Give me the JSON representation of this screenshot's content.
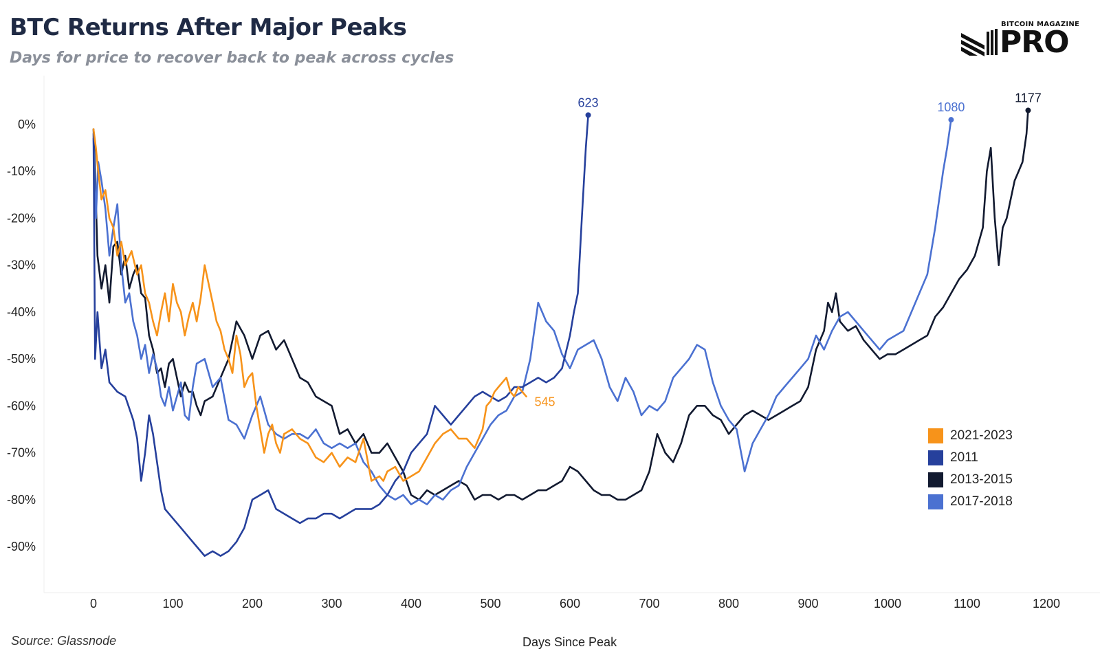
{
  "header": {
    "title": "BTC Returns After Major Peaks",
    "subtitle": "Days for price to recover back to peak across cycles"
  },
  "logo": {
    "top_text": "BITCOIN MAGAZINE",
    "main_text": "PRO"
  },
  "footer": {
    "source": "Source: Glassnode"
  },
  "chart_data": {
    "type": "line",
    "title": "BTC Returns After Major Peaks",
    "subtitle": "Days for price to recover back to peak across cycles",
    "xlabel": "Days Since Peak",
    "ylabel": "",
    "xlim": [
      -60,
      1240
    ],
    "ylim": [
      -97,
      5
    ],
    "x_ticks": [
      0,
      100,
      200,
      300,
      400,
      500,
      600,
      700,
      800,
      900,
      1000,
      1100,
      1200
    ],
    "x_tick_labels": [
      "0",
      "100",
      "200",
      "300",
      "400",
      "500",
      "600",
      "700",
      "800",
      "900",
      "1000",
      "1100",
      "1200"
    ],
    "y_ticks": [
      0,
      -10,
      -20,
      -30,
      -40,
      -50,
      -60,
      -70,
      -80,
      -90
    ],
    "y_tick_labels": [
      "0%",
      "-10%",
      "-20%",
      "-30%",
      "-40%",
      "-50%",
      "-60%",
      "-70%",
      "-80%",
      "-90%"
    ],
    "grid": false,
    "legend_position": "bottom-right",
    "series": [
      {
        "name": "2021-2023",
        "color": "#f7931a",
        "end_label": "545",
        "end_marker": false,
        "x": [
          0,
          3,
          6,
          10,
          15,
          20,
          25,
          30,
          35,
          40,
          48,
          55,
          60,
          65,
          70,
          75,
          80,
          85,
          90,
          95,
          100,
          105,
          110,
          115,
          120,
          125,
          130,
          135,
          140,
          145,
          150,
          155,
          160,
          165,
          170,
          175,
          180,
          185,
          190,
          195,
          200,
          205,
          210,
          215,
          220,
          225,
          230,
          235,
          240,
          250,
          260,
          270,
          280,
          290,
          300,
          310,
          320,
          330,
          340,
          350,
          360,
          365,
          370,
          380,
          390,
          400,
          410,
          420,
          430,
          440,
          450,
          460,
          470,
          480,
          490,
          495,
          500,
          505,
          510,
          515,
          520,
          525,
          530,
          535,
          540,
          545
        ],
        "y": [
          -1,
          -5,
          -10,
          -16,
          -14,
          -20,
          -22,
          -28,
          -25,
          -30,
          -27,
          -32,
          -30,
          -36,
          -38,
          -42,
          -45,
          -40,
          -36,
          -42,
          -34,
          -38,
          -40,
          -45,
          -41,
          -38,
          -42,
          -37,
          -30,
          -34,
          -38,
          -42,
          -44,
          -48,
          -50,
          -53,
          -45,
          -49,
          -56,
          -54,
          -53,
          -60,
          -65,
          -70,
          -66,
          -64,
          -68,
          -70,
          -66,
          -65,
          -67,
          -68,
          -71,
          -72,
          -70,
          -73,
          -71,
          -72,
          -67,
          -76,
          -75,
          -76,
          -74,
          -73,
          -76,
          -75,
          -74,
          -71,
          -68,
          -66,
          -65,
          -67,
          -67,
          -69,
          -65,
          -60,
          -59,
          -57,
          -56,
          -55,
          -54,
          -57,
          -58,
          -56,
          -57,
          -58
        ]
      },
      {
        "name": "2011",
        "color": "#26409c",
        "end_label": "623",
        "end_marker": true,
        "x": [
          0,
          2,
          5,
          10,
          15,
          20,
          30,
          40,
          50,
          55,
          60,
          65,
          70,
          75,
          80,
          85,
          90,
          95,
          100,
          110,
          120,
          130,
          140,
          150,
          160,
          170,
          180,
          190,
          200,
          210,
          220,
          230,
          240,
          250,
          260,
          270,
          280,
          290,
          300,
          310,
          320,
          330,
          340,
          350,
          360,
          370,
          380,
          390,
          400,
          410,
          420,
          430,
          440,
          450,
          460,
          470,
          480,
          490,
          500,
          510,
          520,
          530,
          540,
          550,
          560,
          570,
          580,
          590,
          600,
          605,
          610,
          615,
          620,
          623
        ],
        "y": [
          -2,
          -50,
          -40,
          -52,
          -48,
          -55,
          -57,
          -58,
          -63,
          -67,
          -76,
          -70,
          -62,
          -66,
          -72,
          -78,
          -82,
          -83,
          -84,
          -86,
          -88,
          -90,
          -92,
          -91,
          -92,
          -91,
          -89,
          -86,
          -80,
          -79,
          -78,
          -82,
          -83,
          -84,
          -85,
          -84,
          -84,
          -83,
          -83,
          -84,
          -83,
          -82,
          -82,
          -82,
          -81,
          -79,
          -76,
          -74,
          -70,
          -68,
          -66,
          -60,
          -62,
          -64,
          -62,
          -60,
          -58,
          -57,
          -58,
          -59,
          -58,
          -56,
          -56,
          -55,
          -54,
          -55,
          -54,
          -52,
          -45,
          -40,
          -36,
          -20,
          -5,
          2
        ]
      },
      {
        "name": "2013-2015",
        "color": "#121a30",
        "end_label": "1177",
        "end_marker": true,
        "x": [
          0,
          2,
          5,
          10,
          15,
          20,
          25,
          30,
          35,
          40,
          45,
          50,
          55,
          60,
          65,
          70,
          75,
          80,
          85,
          90,
          95,
          100,
          105,
          110,
          115,
          120,
          125,
          130,
          135,
          140,
          150,
          160,
          170,
          180,
          190,
          200,
          210,
          220,
          230,
          240,
          250,
          260,
          270,
          280,
          290,
          300,
          310,
          320,
          330,
          340,
          350,
          360,
          370,
          380,
          390,
          400,
          410,
          420,
          430,
          440,
          450,
          460,
          470,
          480,
          490,
          500,
          510,
          520,
          530,
          540,
          550,
          560,
          570,
          580,
          590,
          600,
          610,
          620,
          630,
          640,
          650,
          660,
          670,
          680,
          690,
          700,
          710,
          720,
          730,
          740,
          750,
          760,
          770,
          780,
          790,
          800,
          810,
          820,
          830,
          840,
          850,
          860,
          870,
          880,
          890,
          900,
          910,
          920,
          925,
          930,
          935,
          940,
          950,
          960,
          970,
          980,
          990,
          1000,
          1010,
          1020,
          1030,
          1040,
          1050,
          1060,
          1070,
          1080,
          1090,
          1100,
          1110,
          1120,
          1125,
          1130,
          1135,
          1140,
          1145,
          1150,
          1155,
          1160,
          1165,
          1170,
          1175,
          1177
        ],
        "y": [
          -1,
          -10,
          -28,
          -35,
          -30,
          -38,
          -26,
          -25,
          -32,
          -28,
          -35,
          -32,
          -30,
          -36,
          -37,
          -45,
          -48,
          -53,
          -52,
          -56,
          -51,
          -50,
          -54,
          -58,
          -55,
          -57,
          -57,
          -60,
          -62,
          -59,
          -58,
          -54,
          -50,
          -42,
          -45,
          -50,
          -45,
          -44,
          -48,
          -46,
          -50,
          -54,
          -55,
          -58,
          -59,
          -60,
          -66,
          -65,
          -68,
          -66,
          -70,
          -70,
          -68,
          -71,
          -74,
          -79,
          -80,
          -78,
          -79,
          -78,
          -77,
          -76,
          -77,
          -80,
          -79,
          -79,
          -80,
          -79,
          -79,
          -80,
          -79,
          -78,
          -78,
          -77,
          -76,
          -73,
          -74,
          -76,
          -78,
          -79,
          -79,
          -80,
          -80,
          -79,
          -78,
          -74,
          -66,
          -70,
          -72,
          -68,
          -62,
          -60,
          -60,
          -62,
          -63,
          -66,
          -64,
          -62,
          -61,
          -62,
          -63,
          -62,
          -61,
          -60,
          -59,
          -56,
          -48,
          -44,
          -38,
          -40,
          -36,
          -42,
          -44,
          -43,
          -46,
          -48,
          -50,
          -49,
          -49,
          -48,
          -47,
          -46,
          -45,
          -41,
          -39,
          -36,
          -33,
          -31,
          -28,
          -22,
          -10,
          -5,
          -20,
          -30,
          -22,
          -20,
          -16,
          -12,
          -10,
          -8,
          -2,
          3
        ]
      },
      {
        "name": "2017-2018",
        "color": "#4b71d1",
        "end_label": "1080",
        "end_marker": true,
        "x": [
          0,
          3,
          6,
          10,
          15,
          20,
          25,
          30,
          35,
          40,
          45,
          50,
          55,
          60,
          65,
          70,
          75,
          80,
          85,
          90,
          95,
          100,
          105,
          110,
          115,
          120,
          125,
          130,
          140,
          150,
          160,
          170,
          180,
          190,
          200,
          210,
          220,
          230,
          240,
          250,
          260,
          270,
          280,
          290,
          300,
          310,
          320,
          330,
          340,
          350,
          360,
          370,
          380,
          390,
          400,
          410,
          420,
          430,
          440,
          450,
          460,
          470,
          480,
          490,
          500,
          510,
          520,
          530,
          540,
          550,
          560,
          570,
          580,
          590,
          600,
          610,
          620,
          630,
          640,
          650,
          660,
          670,
          680,
          690,
          700,
          710,
          720,
          730,
          740,
          750,
          760,
          770,
          780,
          790,
          800,
          810,
          820,
          825,
          830,
          840,
          850,
          860,
          870,
          880,
          890,
          900,
          910,
          920,
          930,
          940,
          950,
          960,
          970,
          980,
          990,
          1000,
          1010,
          1020,
          1030,
          1040,
          1050,
          1060,
          1070,
          1075,
          1080
        ],
        "y": [
          -3,
          -20,
          -8,
          -12,
          -18,
          -28,
          -22,
          -17,
          -30,
          -38,
          -36,
          -42,
          -45,
          -50,
          -47,
          -53,
          -49,
          -52,
          -58,
          -60,
          -56,
          -61,
          -58,
          -55,
          -62,
          -63,
          -56,
          -51,
          -50,
          -56,
          -54,
          -63,
          -64,
          -67,
          -62,
          -58,
          -64,
          -66,
          -67,
          -66,
          -66,
          -67,
          -65,
          -68,
          -69,
          -68,
          -69,
          -68,
          -72,
          -74,
          -77,
          -79,
          -80,
          -79,
          -81,
          -80,
          -81,
          -79,
          -80,
          -78,
          -77,
          -73,
          -70,
          -67,
          -64,
          -62,
          -61,
          -58,
          -57,
          -50,
          -38,
          -42,
          -44,
          -49,
          -52,
          -48,
          -47,
          -46,
          -50,
          -56,
          -59,
          -54,
          -57,
          -62,
          -60,
          -61,
          -59,
          -54,
          -52,
          -50,
          -47,
          -48,
          -55,
          -60,
          -63,
          -65,
          -74,
          -71,
          -68,
          -65,
          -62,
          -58,
          -56,
          -54,
          -52,
          -50,
          -45,
          -48,
          -44,
          -41,
          -40,
          -42,
          -44,
          -46,
          -48,
          -46,
          -45,
          -44,
          -40,
          -36,
          -32,
          -22,
          -10,
          -5,
          1
        ]
      }
    ]
  }
}
